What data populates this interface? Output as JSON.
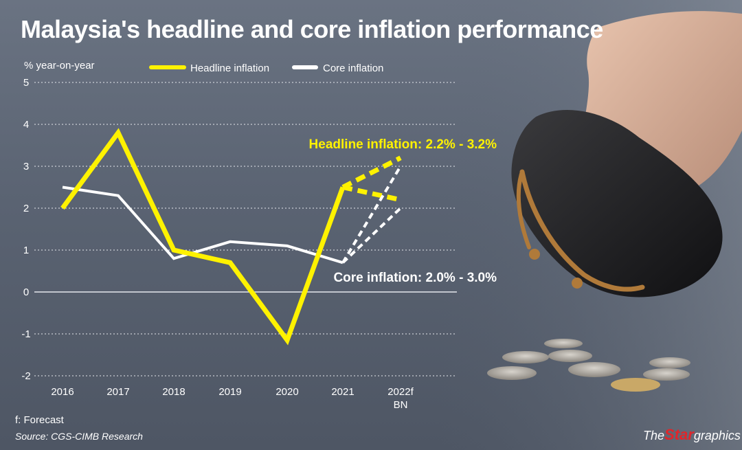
{
  "title": "Malaysia's headline and core inflation performance",
  "footnote": "f: Forecast",
  "source": "Source: CGS-CIMB Research",
  "brand": {
    "prefix": "The",
    "name": "Star",
    "suffix": "graphics"
  },
  "colors": {
    "headline": "#fff200",
    "core": "#ffffff",
    "grid": "#e6e9ee",
    "text": "#ffffff"
  },
  "chart_data": {
    "type": "line",
    "ylabel": "% year-on-year",
    "ylim": [
      -2,
      5
    ],
    "yticks": [
      -2,
      -1,
      0,
      1,
      2,
      3,
      4,
      5
    ],
    "grid": true,
    "legend_position": "top",
    "categories": [
      "2016",
      "2017",
      "2018",
      "2019",
      "2020",
      "2021",
      "2022f"
    ],
    "category_sublabels": [
      "",
      "",
      "",
      "",
      "",
      "",
      "BN"
    ],
    "series": [
      {
        "name": "Headline inflation",
        "values": [
          2.0,
          3.8,
          1.0,
          0.7,
          -1.15,
          2.5,
          null
        ]
      },
      {
        "name": "Core inflation",
        "values": [
          2.5,
          2.3,
          0.8,
          1.2,
          1.1,
          0.7,
          null
        ]
      }
    ],
    "forecasts": [
      {
        "series": "Headline inflation",
        "from": "2021",
        "to": "2022f",
        "low": 2.2,
        "high": 3.2,
        "annotation": "Headline inflation: 2.2% - 3.2%"
      },
      {
        "series": "Core inflation",
        "from": "2021",
        "to": "2022f",
        "low": 2.0,
        "high": 3.0,
        "annotation": "Core inflation: 2.0% - 3.0%"
      }
    ]
  }
}
